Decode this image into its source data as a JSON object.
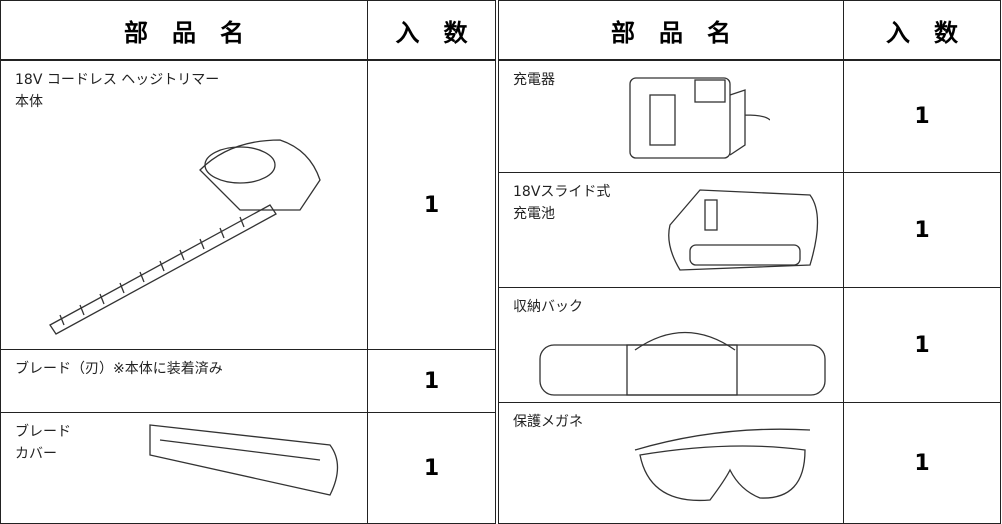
{
  "left": {
    "header": {
      "name": "部　品　名",
      "qty": "入　数"
    },
    "rows": [
      {
        "name": [
          "18V コードレス ヘッジトリマー",
          "本体"
        ],
        "qty": "1"
      },
      {
        "name": [
          "ブレード（刃）※本体に装着済み"
        ],
        "qty": "1"
      },
      {
        "name": [
          "ブレード",
          "カバー"
        ],
        "qty": "1"
      }
    ]
  },
  "right": {
    "header": {
      "name": "部　品　名",
      "qty": "入　数"
    },
    "rows": [
      {
        "name": [
          "充電器"
        ],
        "qty": "1"
      },
      {
        "name": [
          "18Vスライド式",
          "充電池"
        ],
        "qty": "1"
      },
      {
        "name": [
          "収納バック"
        ],
        "qty": "1"
      },
      {
        "name": [
          "保護メガネ"
        ],
        "qty": "1"
      }
    ]
  }
}
